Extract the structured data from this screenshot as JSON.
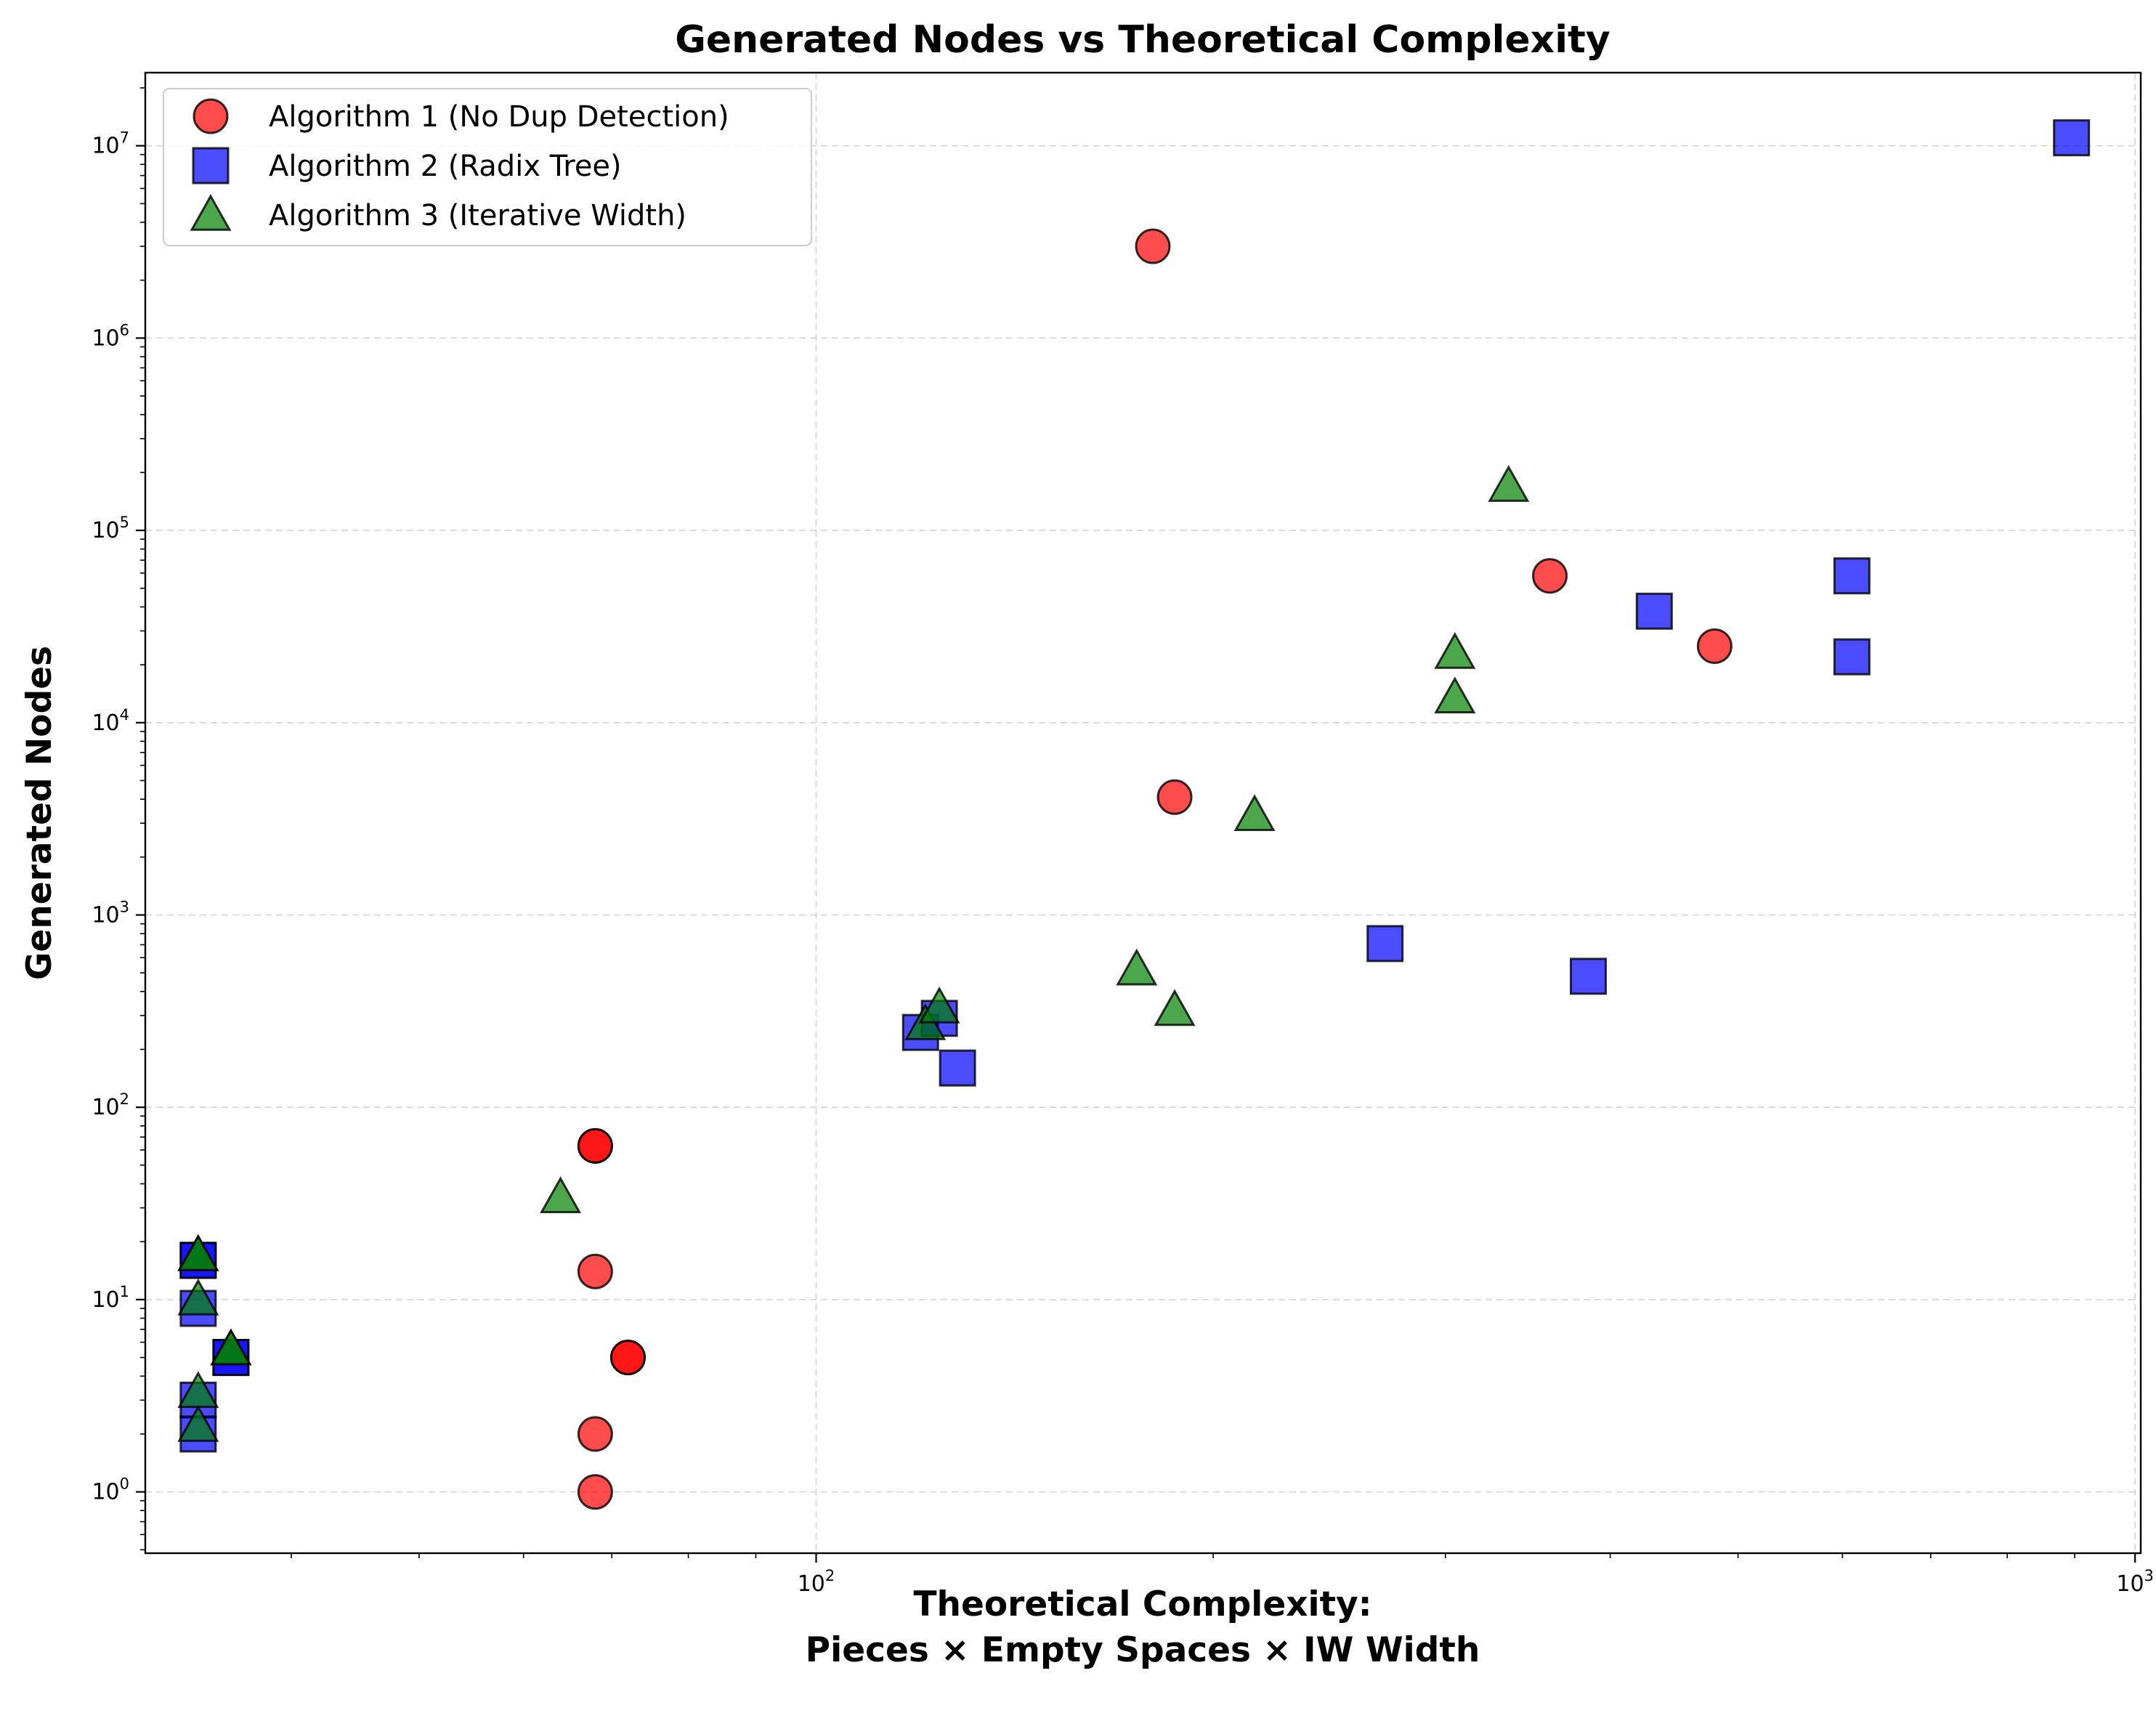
{
  "chart_data": {
    "type": "scatter",
    "title": "Generated Nodes vs Theoretical Complexity",
    "xlabel_lines": [
      "Theoretical Complexity:",
      "Pieces × Empty Spaces × IW Width"
    ],
    "ylabel": "Generated Nodes",
    "x_scale": "log",
    "y_scale": "log",
    "xlim": [
      31,
      1010
    ],
    "ylim": [
      0.48,
      24000000
    ],
    "x_ticks": [
      {
        "value": 100,
        "base": "10",
        "exp": "2"
      },
      {
        "value": 1000,
        "base": "10",
        "exp": "3"
      }
    ],
    "y_ticks": [
      {
        "value": 1,
        "base": "10",
        "exp": "0"
      },
      {
        "value": 10,
        "base": "10",
        "exp": "1"
      },
      {
        "value": 100,
        "base": "10",
        "exp": "2"
      },
      {
        "value": 1000,
        "base": "10",
        "exp": "3"
      },
      {
        "value": 10000,
        "base": "10",
        "exp": "4"
      },
      {
        "value": 100000,
        "base": "10",
        "exp": "5"
      },
      {
        "value": 1000000,
        "base": "10",
        "exp": "6"
      },
      {
        "value": 10000000,
        "base": "10",
        "exp": "7"
      }
    ],
    "grid": true,
    "legend_position": "upper-left",
    "series": [
      {
        "name": "Algorithm 1 (No Dup Detection)",
        "marker": "circle",
        "color": "#ff0000",
        "opacity": 0.7,
        "points": [
          {
            "x": 68,
            "y": 63
          },
          {
            "x": 68,
            "y": 63
          },
          {
            "x": 68,
            "y": 14
          },
          {
            "x": 72,
            "y": 5
          },
          {
            "x": 72,
            "y": 5
          },
          {
            "x": 68,
            "y": 2
          },
          {
            "x": 68,
            "y": 1
          },
          {
            "x": 180,
            "y": 3000000
          },
          {
            "x": 187,
            "y": 4100
          },
          {
            "x": 360,
            "y": 58000
          },
          {
            "x": 480,
            "y": 25000
          }
        ]
      },
      {
        "name": "Algorithm 2 (Radix Tree)",
        "marker": "square",
        "color": "#0000ff",
        "opacity": 0.7,
        "points": [
          {
            "x": 34,
            "y": 16
          },
          {
            "x": 34,
            "y": 16
          },
          {
            "x": 34,
            "y": 9
          },
          {
            "x": 36,
            "y": 5
          },
          {
            "x": 36,
            "y": 5
          },
          {
            "x": 34,
            "y": 3
          },
          {
            "x": 34,
            "y": 2
          },
          {
            "x": 120,
            "y": 245
          },
          {
            "x": 124,
            "y": 290
          },
          {
            "x": 128,
            "y": 160
          },
          {
            "x": 270,
            "y": 710
          },
          {
            "x": 385,
            "y": 480
          },
          {
            "x": 432,
            "y": 38000
          },
          {
            "x": 610,
            "y": 58000
          },
          {
            "x": 610,
            "y": 22000
          },
          {
            "x": 895,
            "y": 11000000
          }
        ]
      },
      {
        "name": "Algorithm 3 (Iterative Width)",
        "marker": "triangle",
        "color": "#008000",
        "opacity": 0.7,
        "points": [
          {
            "x": 34,
            "y": 17
          },
          {
            "x": 34,
            "y": 17
          },
          {
            "x": 34,
            "y": 10
          },
          {
            "x": 36,
            "y": 5.5
          },
          {
            "x": 36,
            "y": 5.5
          },
          {
            "x": 34,
            "y": 3.3
          },
          {
            "x": 34,
            "y": 2.2
          },
          {
            "x": 64,
            "y": 34
          },
          {
            "x": 121,
            "y": 270
          },
          {
            "x": 124,
            "y": 330
          },
          {
            "x": 175,
            "y": 520
          },
          {
            "x": 187,
            "y": 320
          },
          {
            "x": 215,
            "y": 3300
          },
          {
            "x": 305,
            "y": 13500
          },
          {
            "x": 305,
            "y": 23000
          },
          {
            "x": 335,
            "y": 170000
          }
        ]
      }
    ]
  }
}
